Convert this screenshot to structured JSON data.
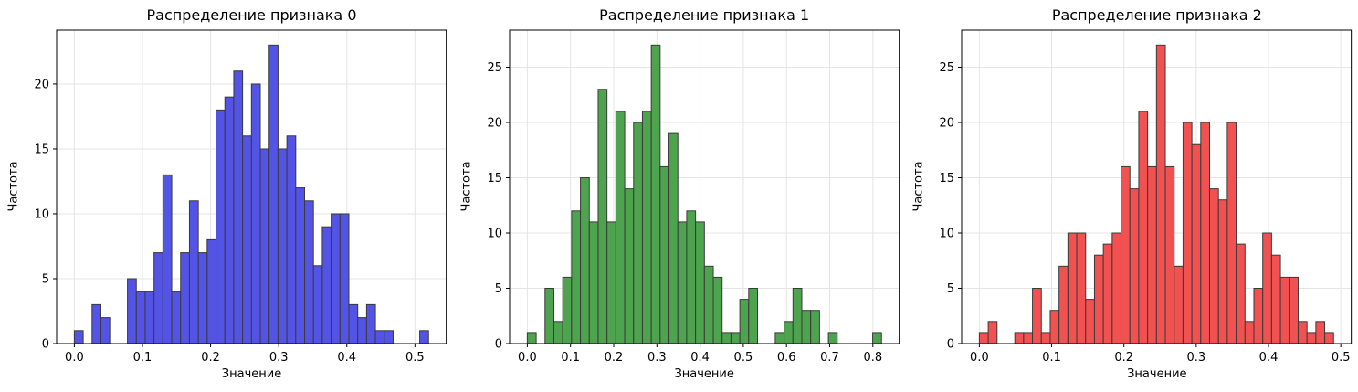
{
  "figure": {
    "background": "#ffffff"
  },
  "style": {
    "grid_color": "#e5e5e5",
    "spine_color": "#000000",
    "tick_color": "#000000",
    "tick_label_color": "#000000"
  },
  "chart_data": [
    {
      "type": "bar",
      "chart_kind": "histogram",
      "title": "Распределение признака 0",
      "xlabel": "Значение",
      "ylabel": "Частота",
      "color": "#5353e6",
      "edge_color": "#3a3a3a",
      "grid": true,
      "legend": false,
      "bin_start": 0.0,
      "bin_width": 0.013,
      "counts": [
        1,
        0,
        3,
        2,
        0,
        0,
        5,
        4,
        4,
        7,
        13,
        4,
        7,
        11,
        7,
        8,
        18,
        19,
        21,
        16,
        20,
        15,
        23,
        15,
        16,
        12,
        11,
        6,
        9,
        10,
        10,
        3,
        2,
        3,
        1,
        1,
        0,
        0,
        0,
        1
      ],
      "xlim": [
        -0.026,
        0.546
      ],
      "ylim": [
        0,
        24.15
      ],
      "xticks": [
        0.0,
        0.1,
        0.2,
        0.3,
        0.4,
        0.5
      ],
      "yticks": [
        0,
        5,
        10,
        15,
        20
      ]
    },
    {
      "type": "bar",
      "chart_kind": "histogram",
      "title": "Распределение признака 1",
      "xlabel": "Значение",
      "ylabel": "Частота",
      "color": "#4ea44e",
      "edge_color": "#3a3a3a",
      "grid": true,
      "legend": false,
      "bin_start": 0.0,
      "bin_width": 0.0205,
      "counts": [
        1,
        0,
        5,
        2,
        6,
        12,
        15,
        11,
        23,
        11,
        21,
        14,
        20,
        21,
        27,
        16,
        19,
        11,
        12,
        11,
        7,
        6,
        1,
        1,
        4,
        5,
        0,
        0,
        1,
        2,
        5,
        3,
        3,
        0,
        1,
        0,
        0,
        0,
        0,
        1
      ],
      "xlim": [
        -0.041,
        0.861
      ],
      "ylim": [
        0,
        28.35
      ],
      "xticks": [
        0.0,
        0.1,
        0.2,
        0.3,
        0.4,
        0.5,
        0.6,
        0.7,
        0.8
      ],
      "yticks": [
        0,
        5,
        10,
        15,
        20,
        25
      ]
    },
    {
      "type": "bar",
      "chart_kind": "histogram",
      "title": "Распределение признака 2",
      "xlabel": "Значение",
      "ylabel": "Частота",
      "color": "#f25151",
      "edge_color": "#3a3a3a",
      "grid": true,
      "legend": false,
      "bin_start": 0.0,
      "bin_width": 0.01225,
      "counts": [
        1,
        2,
        0,
        0,
        1,
        1,
        5,
        1,
        3,
        7,
        10,
        10,
        4,
        8,
        9,
        10,
        16,
        14,
        21,
        16,
        27,
        16,
        7,
        20,
        18,
        20,
        14,
        13,
        20,
        9,
        2,
        5,
        10,
        8,
        6,
        6,
        2,
        1,
        2,
        1
      ],
      "xlim": [
        -0.0245,
        0.5145
      ],
      "ylim": [
        0,
        28.35
      ],
      "xticks": [
        0.0,
        0.1,
        0.2,
        0.3,
        0.4,
        0.5
      ],
      "yticks": [
        0,
        5,
        10,
        15,
        20,
        25
      ]
    }
  ]
}
